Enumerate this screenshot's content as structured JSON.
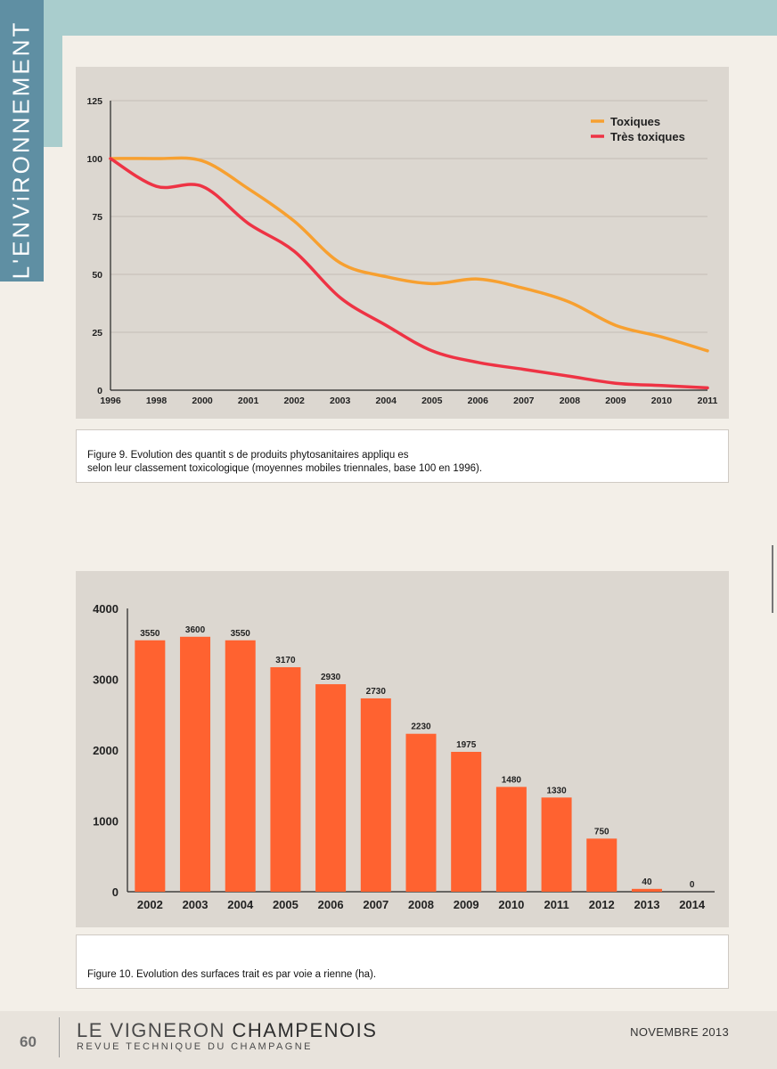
{
  "section": {
    "title": "L'ENViRONNEMENT"
  },
  "figure9": {
    "caption_line1": "Figure 9. Evolution des quantit  s de produits phytosanitaires appliqu  es",
    "caption_line2": "selon leur classement toxicologique (moyennes mobiles triennales, base 100 en 1996)."
  },
  "figure10": {
    "caption": "Figure 10. Evolution des surfaces trait  es par voie a  rienne (ha)."
  },
  "footer": {
    "page_number": "60",
    "brand_part1": "LE VIGNERON",
    "brand_part2": "CHAMPENOIS",
    "subtitle": "REVUE TECHNIQUE DU CHAMPAGNE",
    "date": "NOVEMBRE 2013"
  },
  "chart_data": [
    {
      "type": "line",
      "categories": [
        "1996",
        "1998",
        "2000",
        "2001",
        "2002",
        "2003",
        "2004",
        "2005",
        "2006",
        "2007",
        "2008",
        "2009",
        "2010",
        "2011"
      ],
      "series": [
        {
          "name": "Toxiques",
          "color": "#f7a030",
          "values": [
            100,
            100,
            99,
            87,
            73,
            55,
            49,
            46,
            48,
            44,
            38,
            28,
            23,
            17
          ]
        },
        {
          "name": "Très toxiques",
          "color": "#ee3344",
          "values": [
            100,
            88,
            88,
            72,
            60,
            40,
            28,
            17,
            12,
            9,
            6,
            3,
            2,
            1
          ]
        }
      ],
      "yticks": [
        0,
        25,
        50,
        75,
        100,
        125
      ],
      "ylim": [
        0,
        125
      ],
      "grid": true,
      "legend_position": "top-right"
    },
    {
      "type": "bar",
      "categories": [
        "2002",
        "2003",
        "2004",
        "2005",
        "2006",
        "2007",
        "2008",
        "2009",
        "2010",
        "2011",
        "2012",
        "2013",
        "2014"
      ],
      "values": [
        3550,
        3600,
        3550,
        3170,
        2930,
        2730,
        2230,
        1975,
        1480,
        1330,
        750,
        40,
        0
      ],
      "data_labels": [
        "3550",
        "3600",
        "3550",
        "3170",
        "2930",
        "2730",
        "2230",
        "1975",
        "1480",
        "1330",
        "750",
        "40",
        "0"
      ],
      "yticks": [
        0,
        1000,
        2000,
        3000,
        4000
      ],
      "ylim": [
        0,
        4000
      ],
      "color": "#ff6230",
      "grid": false
    }
  ]
}
